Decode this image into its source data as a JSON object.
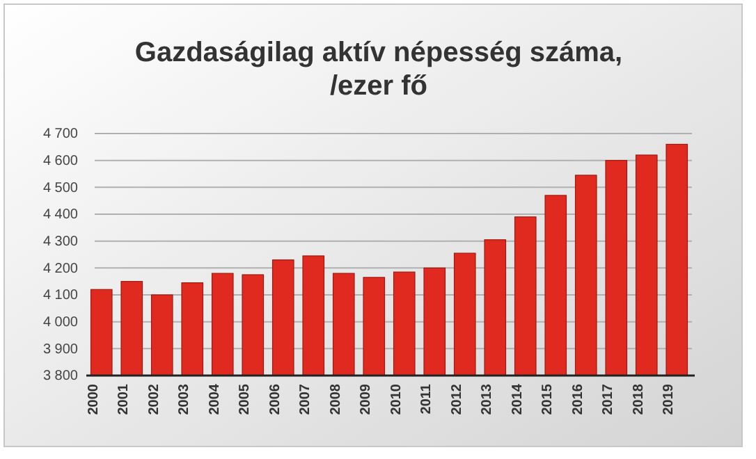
{
  "chart_data": {
    "type": "bar",
    "title": "Gazdaságilag aktív népesség száma, /ezer fő",
    "categories": [
      "2000",
      "2001",
      "2002",
      "2003",
      "2004",
      "2005",
      "2006",
      "2007",
      "2008",
      "2009",
      "2010",
      "2011",
      "2012",
      "2013",
      "2014",
      "2015",
      "2016",
      "2017",
      "2018",
      "2019"
    ],
    "values": [
      4120,
      4150,
      4100,
      4145,
      4180,
      4175,
      4230,
      4245,
      4180,
      4165,
      4185,
      4200,
      4255,
      4305,
      4390,
      4470,
      4545,
      4600,
      4620,
      4660
    ],
    "color": "#e02a20",
    "ylim": [
      3800,
      4700
    ],
    "yticks": [
      {
        "value": 3800,
        "label": "3 800"
      },
      {
        "value": 3900,
        "label": "3 900"
      },
      {
        "value": 4000,
        "label": "4 000"
      },
      {
        "value": 4100,
        "label": "4 100"
      },
      {
        "value": 4200,
        "label": "4 200"
      },
      {
        "value": 4300,
        "label": "4 300"
      },
      {
        "value": 4400,
        "label": "4 400"
      },
      {
        "value": 4500,
        "label": "4 500"
      },
      {
        "value": 4600,
        "label": "4 600"
      },
      {
        "value": 4700,
        "label": "4 700"
      }
    ],
    "grid": "y"
  }
}
